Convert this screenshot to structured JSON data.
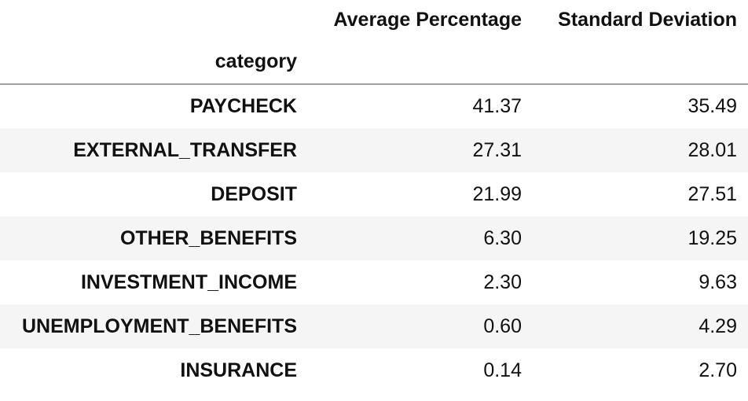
{
  "chart_data": {
    "type": "table",
    "columns": [
      "Average Percentage",
      "Standard Deviation"
    ],
    "index_name": "category",
    "rows": [
      {
        "category": "PAYCHECK",
        "values": [
          "41.37",
          "35.49"
        ]
      },
      {
        "category": "EXTERNAL_TRANSFER",
        "values": [
          "27.31",
          "28.01"
        ]
      },
      {
        "category": "DEPOSIT",
        "values": [
          "21.99",
          "27.51"
        ]
      },
      {
        "category": "OTHER_BENEFITS",
        "values": [
          "6.30",
          "19.25"
        ]
      },
      {
        "category": "INVESTMENT_INCOME",
        "values": [
          "2.30",
          "9.63"
        ]
      },
      {
        "category": "UNEMPLOYMENT_BENEFITS",
        "values": [
          "0.60",
          "4.29"
        ]
      },
      {
        "category": "INSURANCE",
        "values": [
          "0.14",
          "2.70"
        ]
      }
    ]
  }
}
